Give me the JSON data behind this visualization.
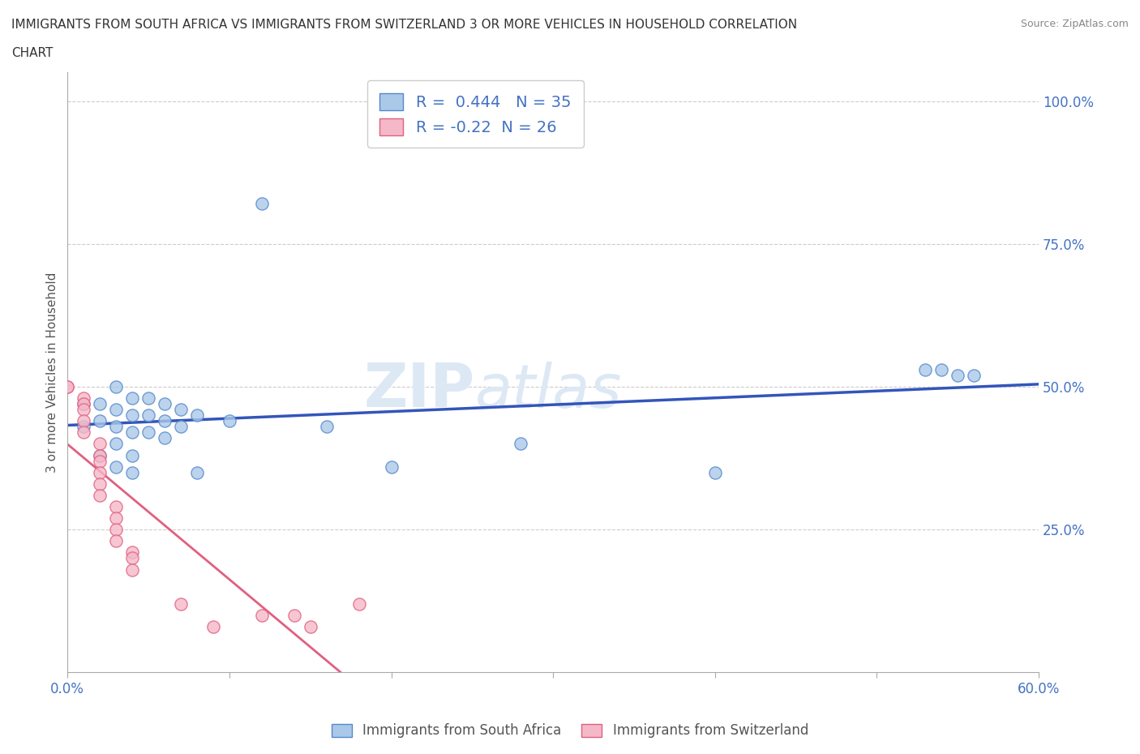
{
  "title_line1": "IMMIGRANTS FROM SOUTH AFRICA VS IMMIGRANTS FROM SWITZERLAND 3 OR MORE VEHICLES IN HOUSEHOLD CORRELATION",
  "title_line2": "CHART",
  "source": "Source: ZipAtlas.com",
  "ylabel": "3 or more Vehicles in Household",
  "xlim": [
    0.0,
    0.6
  ],
  "ylim": [
    0.0,
    1.05
  ],
  "ytick_positions_right": [
    0.25,
    0.5,
    0.75,
    1.0
  ],
  "background_color": "#ffffff",
  "watermark_part1": "ZIP",
  "watermark_part2": "atlas",
  "south_africa_color": "#aac8e8",
  "south_africa_edge": "#5588cc",
  "switzerland_color": "#f5b8c8",
  "switzerland_edge": "#e06080",
  "south_africa_R": 0.444,
  "south_africa_N": 35,
  "switzerland_R": -0.22,
  "switzerland_N": 26,
  "south_africa_line_color": "#3355bb",
  "switzerland_line_color": "#e06080",
  "south_africa_scatter": [
    [
      0.01,
      0.47
    ],
    [
      0.01,
      0.43
    ],
    [
      0.02,
      0.47
    ],
    [
      0.02,
      0.44
    ],
    [
      0.02,
      0.38
    ],
    [
      0.03,
      0.5
    ],
    [
      0.03,
      0.46
    ],
    [
      0.03,
      0.43
    ],
    [
      0.03,
      0.4
    ],
    [
      0.03,
      0.36
    ],
    [
      0.04,
      0.48
    ],
    [
      0.04,
      0.45
    ],
    [
      0.04,
      0.42
    ],
    [
      0.04,
      0.38
    ],
    [
      0.04,
      0.35
    ],
    [
      0.05,
      0.48
    ],
    [
      0.05,
      0.45
    ],
    [
      0.05,
      0.42
    ],
    [
      0.06,
      0.47
    ],
    [
      0.06,
      0.44
    ],
    [
      0.06,
      0.41
    ],
    [
      0.07,
      0.46
    ],
    [
      0.07,
      0.43
    ],
    [
      0.08,
      0.45
    ],
    [
      0.08,
      0.35
    ],
    [
      0.1,
      0.44
    ],
    [
      0.12,
      0.82
    ],
    [
      0.16,
      0.43
    ],
    [
      0.2,
      0.36
    ],
    [
      0.28,
      0.4
    ],
    [
      0.4,
      0.35
    ],
    [
      0.53,
      0.53
    ],
    [
      0.54,
      0.53
    ],
    [
      0.55,
      0.52
    ],
    [
      0.56,
      0.52
    ]
  ],
  "switzerland_scatter": [
    [
      0.0,
      0.5
    ],
    [
      0.0,
      0.5
    ],
    [
      0.01,
      0.48
    ],
    [
      0.01,
      0.47
    ],
    [
      0.01,
      0.46
    ],
    [
      0.01,
      0.44
    ],
    [
      0.01,
      0.42
    ],
    [
      0.02,
      0.4
    ],
    [
      0.02,
      0.38
    ],
    [
      0.02,
      0.37
    ],
    [
      0.02,
      0.35
    ],
    [
      0.02,
      0.33
    ],
    [
      0.02,
      0.31
    ],
    [
      0.03,
      0.29
    ],
    [
      0.03,
      0.27
    ],
    [
      0.03,
      0.25
    ],
    [
      0.03,
      0.23
    ],
    [
      0.04,
      0.21
    ],
    [
      0.04,
      0.2
    ],
    [
      0.04,
      0.18
    ],
    [
      0.07,
      0.12
    ],
    [
      0.09,
      0.08
    ],
    [
      0.12,
      0.1
    ],
    [
      0.14,
      0.1
    ],
    [
      0.15,
      0.08
    ],
    [
      0.18,
      0.12
    ]
  ],
  "grid_color": "#cccccc",
  "grid_linestyle": "--"
}
